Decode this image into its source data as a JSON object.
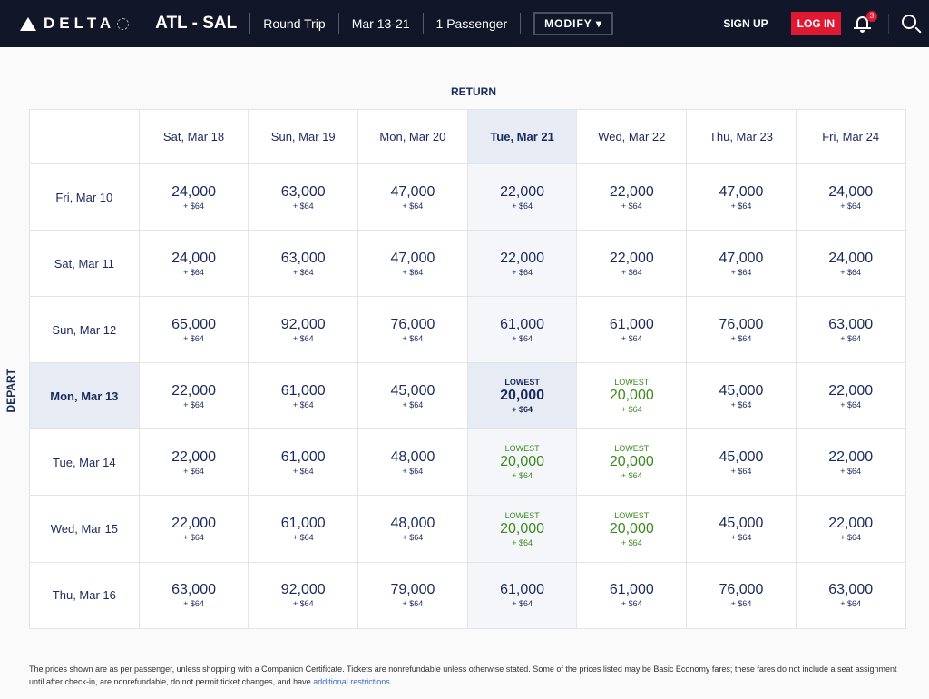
{
  "header": {
    "brand": "DELTA",
    "route": "ATL - SAL",
    "trip_type": "Round Trip",
    "dates": "Mar 13-21",
    "passengers": "1 Passenger",
    "modify": "MODIFY ▾",
    "sign_up": "SIGN UP",
    "log_in": "LOG IN",
    "notifications": "3"
  },
  "grid": {
    "return_label": "RETURN",
    "depart_label": "DEPART",
    "selected_return": 3,
    "selected_depart": 3,
    "lowest_label": "LOWEST",
    "tax": "+ $64",
    "return_dates": [
      "Sat, Mar 18",
      "Sun, Mar 19",
      "Mon, Mar 20",
      "Tue, Mar 21",
      "Wed, Mar 22",
      "Thu, Mar 23",
      "Fri, Mar 24"
    ],
    "rows": [
      {
        "date": "Fri, Mar 10",
        "prices": [
          "24,000",
          "63,000",
          "47,000",
          "22,000",
          "22,000",
          "47,000",
          "24,000"
        ],
        "lowest": []
      },
      {
        "date": "Sat, Mar 11",
        "prices": [
          "24,000",
          "63,000",
          "47,000",
          "22,000",
          "22,000",
          "47,000",
          "24,000"
        ],
        "lowest": []
      },
      {
        "date": "Sun, Mar 12",
        "prices": [
          "65,000",
          "92,000",
          "76,000",
          "61,000",
          "61,000",
          "76,000",
          "63,000"
        ],
        "lowest": []
      },
      {
        "date": "Mon, Mar 13",
        "prices": [
          "22,000",
          "61,000",
          "45,000",
          "20,000",
          "20,000",
          "45,000",
          "22,000"
        ],
        "lowest": [
          3,
          4
        ]
      },
      {
        "date": "Tue, Mar 14",
        "prices": [
          "22,000",
          "61,000",
          "48,000",
          "20,000",
          "20,000",
          "45,000",
          "22,000"
        ],
        "lowest": [
          3,
          4
        ]
      },
      {
        "date": "Wed, Mar 15",
        "prices": [
          "22,000",
          "61,000",
          "48,000",
          "20,000",
          "20,000",
          "45,000",
          "22,000"
        ],
        "lowest": [
          3,
          4
        ]
      },
      {
        "date": "Thu, Mar 16",
        "prices": [
          "63,000",
          "92,000",
          "79,000",
          "61,000",
          "61,000",
          "76,000",
          "63,000"
        ],
        "lowest": []
      }
    ]
  },
  "footer": {
    "text": "The prices shown are as per passenger, unless shopping with a Companion Certificate. Tickets are nonrefundable unless otherwise stated. Some of the prices listed may be Basic Economy fares; these fares do not include a seat assignment until after check-in, are nonrefundable, do not permit ticket changes, and have ",
    "link": "additional restrictions",
    "end": "."
  },
  "colors": {
    "navy": "#111729",
    "red": "#e01933",
    "green": "#3a8a1c",
    "text": "#1b2a5e"
  }
}
